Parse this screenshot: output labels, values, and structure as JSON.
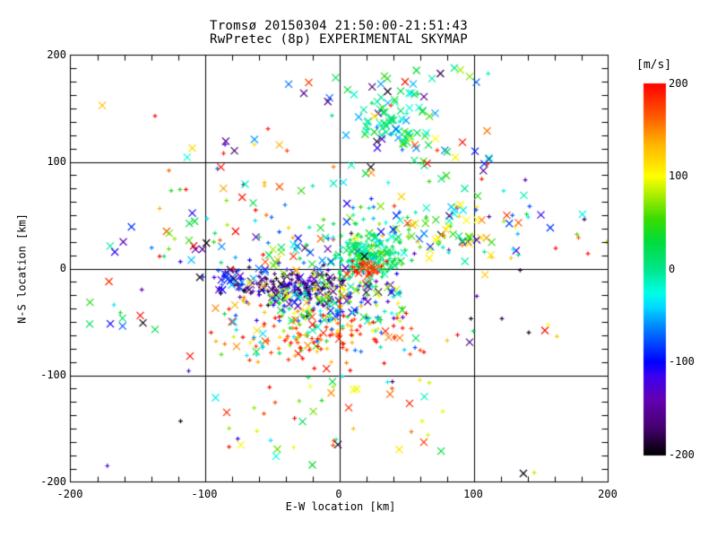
{
  "title": {
    "line1": "Tromsø 20150304 21:50:00-21:51:43",
    "line2": "RwPretec (8p) EXPERIMENTAL SKYMAP"
  },
  "axes": {
    "x": {
      "label": "E-W location [km]",
      "tick_labels": [
        "-200",
        "-100",
        "0",
        "100",
        "200"
      ],
      "range": [
        -200,
        200
      ],
      "minor_tick_step": 20
    },
    "y": {
      "label": "N-S location [km]",
      "tick_labels": [
        "200",
        "100",
        "0",
        "-100",
        "-200"
      ],
      "range": [
        -200,
        200
      ],
      "minor_ticks_per_major": 8
    }
  },
  "colorbar": {
    "unit_label": "[m/s]",
    "tick_labels": [
      "200",
      "100",
      "0",
      "-100",
      "-200"
    ],
    "range": [
      -200,
      200
    ]
  },
  "chart_data": {
    "type": "scatter",
    "title": "Tromsø 20150304 21:50:00-21:51:43 / RwPretec (8p) EXPERIMENTAL SKYMAP",
    "xlabel": "E-W location [km]",
    "ylabel": "N-S location [km]",
    "xlim": [
      -200,
      200
    ],
    "ylim": [
      -200,
      200
    ],
    "grid": true,
    "grid_lines_km": [
      -100,
      0,
      100
    ],
    "color_value_unit": "m/s",
    "color_value_range": [
      -200,
      200
    ],
    "colormap_stops": [
      [
        -200,
        "#000000"
      ],
      [
        -170,
        "#460070"
      ],
      [
        -140,
        "#6400B4"
      ],
      [
        -115,
        "#3C00F0"
      ],
      [
        -100,
        "#0000FF"
      ],
      [
        -60,
        "#008CFF"
      ],
      [
        -40,
        "#00DCFF"
      ],
      [
        -25,
        "#00FFE6"
      ],
      [
        0,
        "#00E68C"
      ],
      [
        30,
        "#00DC3C"
      ],
      [
        55,
        "#3CDC00"
      ],
      [
        80,
        "#AAEE00"
      ],
      [
        100,
        "#FFFF00"
      ],
      [
        135,
        "#FFB400"
      ],
      [
        165,
        "#FF5A00"
      ],
      [
        200,
        "#FF0000"
      ]
    ],
    "markers": [
      "x",
      "+"
    ],
    "render_seed": 20150304,
    "clusters": [
      {
        "name": "top-cluster-core",
        "x": {
          "g": [
            42,
            16
          ]
        },
        "y": {
          "g": [
            138,
            13
          ]
        },
        "n": 60,
        "v": {
          "g": [
            5,
            35,
            -80,
            90
          ]
        },
        "fx": 0.85
      },
      {
        "name": "top-cluster-halo",
        "x": {
          "g": [
            45,
            38
          ]
        },
        "y": {
          "g": [
            140,
            26
          ]
        },
        "n": 28,
        "v": {
          "g": [
            0,
            95,
            -200,
            200
          ]
        },
        "fx": 0.9
      },
      {
        "name": "upper-band",
        "x": {
          "u": [
            -140,
            120
          ]
        },
        "y": {
          "u": [
            55,
            122
          ]
        },
        "n": 48,
        "v": {
          "u": [
            -195,
            200
          ]
        },
        "fx": 0.55
      },
      {
        "name": "top-edge-scatter",
        "x": {
          "u": [
            -60,
            115
          ]
        },
        "y": {
          "u": [
            150,
            185
          ]
        },
        "n": 10,
        "v": {
          "u": [
            -190,
            200
          ]
        },
        "fx": 0.8
      },
      {
        "name": "mid-band",
        "x": {
          "u": [
            -140,
            140
          ]
        },
        "y": {
          "u": [
            5,
            58
          ]
        },
        "n": 115,
        "v": {
          "g": [
            15,
            95,
            -200,
            200
          ]
        },
        "fx": 0.45
      },
      {
        "name": "left-sparse",
        "x": {
          "u": [
            -188,
            -140
          ]
        },
        "y": {
          "u": [
            -60,
            45
          ]
        },
        "n": 13,
        "v": {
          "u": [
            -190,
            200
          ]
        },
        "fx": 0.6
      },
      {
        "name": "navy-band",
        "x": {
          "g": [
            -32,
            25
          ]
        },
        "y": {
          "g": [
            -18,
            9
          ]
        },
        "n": 185,
        "v": {
          "g": [
            -160,
            38,
            -200,
            -55
          ]
        },
        "fx": 0.15
      },
      {
        "name": "blue-cluster-left",
        "x": {
          "g": [
            -80,
            9
          ]
        },
        "y": {
          "g": [
            -12,
            6
          ]
        },
        "n": 35,
        "v": {
          "g": [
            -105,
            40,
            -200,
            -20
          ]
        },
        "fx": 0.5
      },
      {
        "name": "green-cluster",
        "x": {
          "g": [
            23,
            13
          ]
        },
        "y": {
          "g": [
            11,
            11
          ]
        },
        "n": 170,
        "v": {
          "g": [
            12,
            28,
            -60,
            90
          ]
        },
        "fx": 0.3
      },
      {
        "name": "red-knot",
        "x": {
          "g": [
            19,
            7
          ]
        },
        "y": {
          "g": [
            1,
            5
          ]
        },
        "n": 35,
        "v": {
          "g": [
            185,
            18,
            120,
            200
          ]
        },
        "fx": 0.3
      },
      {
        "name": "center-mix",
        "x": {
          "u": [
            -52,
            48
          ]
        },
        "y": {
          "u": [
            -50,
            -14
          ]
        },
        "n": 150,
        "v": {
          "u": [
            -140,
            140
          ]
        },
        "fx": 0.2
      },
      {
        "name": "center-x-sprinkle",
        "x": {
          "u": [
            -75,
            40
          ]
        },
        "y": {
          "u": [
            -30,
            35
          ]
        },
        "n": 30,
        "v": {
          "u": [
            -200,
            200
          ]
        },
        "fx": 1.0
      },
      {
        "name": "green-tail-upper-right",
        "x": {
          "u": [
            30,
            105
          ]
        },
        "y": {
          "u": [
            20,
            60
          ]
        },
        "n": 45,
        "v": {
          "g": [
            40,
            85,
            -160,
            200
          ]
        },
        "fx": 0.7
      },
      {
        "name": "red-band",
        "x": {
          "g": [
            -8,
            34
          ]
        },
        "y": {
          "g": [
            -62,
            13
          ]
        },
        "n": 155,
        "v": {
          "m": [
            [
              0.72,
              {
                "g": [
                  180,
                  25,
                  90,
                  200
                ]
              }
            ],
            [
              0.28,
              {
                "u": [
                  -80,
                  140
                ]
              }
            ]
          ]
        },
        "fx": 0.15
      },
      {
        "name": "left-lower",
        "x": {
          "u": [
            -100,
            -55
          ]
        },
        "y": {
          "u": [
            -88,
            -25
          ]
        },
        "n": 28,
        "v": {
          "u": [
            -120,
            200
          ]
        },
        "fx": 0.3
      },
      {
        "name": "low-scatter",
        "x": {
          "u": [
            -95,
            80
          ]
        },
        "y": {
          "u": [
            -172,
            -100
          ]
        },
        "n": 38,
        "v": {
          "m": [
            [
              0.6,
              {
                "g": [
                  150,
                  45,
                  -20,
                  200
                ]
              }
            ],
            [
              0.4,
              {
                "u": [
                  -190,
                  120
                ]
              }
            ]
          ]
        },
        "fx": 0.35
      },
      {
        "name": "right-sparse",
        "x": {
          "u": [
            55,
            190
          ]
        },
        "y": {
          "u": [
            -70,
            90
          ]
        },
        "n": 22,
        "v": {
          "u": [
            -200,
            200
          ]
        },
        "fx": 0.4
      },
      {
        "name": "wide-sparse",
        "x": {
          "u": [
            -180,
            185
          ]
        },
        "y": {
          "u": [
            -195,
            195
          ]
        },
        "n": 10,
        "v": {
          "u": [
            -200,
            200
          ]
        },
        "fx": 0.7
      }
    ],
    "outlier_points": [
      [
        137,
        -192,
        -195,
        "x"
      ],
      [
        153,
        -58,
        195,
        "x"
      ],
      [
        98,
        -47,
        -190,
        "+"
      ],
      [
        141,
        -60,
        -195,
        "+"
      ],
      [
        121,
        -47,
        -180,
        "+"
      ],
      [
        -137,
        143,
        195,
        "+"
      ],
      [
        -88,
        95,
        195,
        "x"
      ],
      [
        -70,
        79,
        -15,
        "x"
      ],
      [
        -125,
        73,
        40,
        "+"
      ],
      [
        -114,
        74,
        195,
        "+"
      ],
      [
        -53,
        131,
        190,
        "+"
      ],
      [
        -86,
        108,
        195,
        "+"
      ],
      [
        178,
        29,
        170,
        "+"
      ],
      [
        185,
        14,
        195,
        "+"
      ],
      [
        199,
        25,
        80,
        "+"
      ],
      [
        161,
        19,
        195,
        "+"
      ],
      [
        -148,
        -44,
        195,
        "x"
      ],
      [
        -146,
        -51,
        -195,
        "x"
      ],
      [
        -137,
        -57,
        25,
        "x"
      ],
      [
        -107,
        18,
        -150,
        "x"
      ],
      [
        -110,
        8,
        -45,
        "x"
      ],
      [
        -92,
        -121,
        -30,
        "x"
      ],
      [
        -118,
        -143,
        -190,
        "+"
      ],
      [
        -47,
        -176,
        -25,
        "x"
      ],
      [
        -51,
        -161,
        -35,
        "+"
      ],
      [
        -5,
        -106,
        30,
        "x"
      ],
      [
        13,
        -113,
        95,
        "x"
      ],
      [
        -20,
        -184,
        35,
        "x"
      ],
      [
        -1,
        -165,
        -190,
        "x"
      ],
      [
        77,
        -134,
        95,
        "+"
      ],
      [
        66,
        -156,
        90,
        "+"
      ],
      [
        67,
        -107,
        85,
        "+"
      ],
      [
        103,
        68,
        45,
        "x"
      ],
      [
        106,
        84,
        190,
        "+"
      ],
      [
        31,
        173,
        -55,
        "x"
      ],
      [
        49,
        175,
        195,
        "x"
      ],
      [
        55,
        173,
        -50,
        "x"
      ],
      [
        69,
        178,
        -10,
        "x"
      ],
      [
        97,
        180,
        70,
        "x"
      ],
      [
        36,
        166,
        -190,
        "x"
      ],
      [
        63,
        161,
        -160,
        "x"
      ],
      [
        11,
        163,
        -20,
        "x"
      ],
      [
        110,
        129,
        155,
        "x"
      ],
      [
        101,
        110,
        -95,
        "x"
      ],
      [
        9,
        97,
        -15,
        "x"
      ],
      [
        28,
        119,
        -190,
        "x"
      ],
      [
        5,
        125,
        -50,
        "x"
      ],
      [
        -111,
        -82,
        195,
        "x"
      ],
      [
        -112,
        -96,
        -120,
        "+"
      ]
    ]
  }
}
